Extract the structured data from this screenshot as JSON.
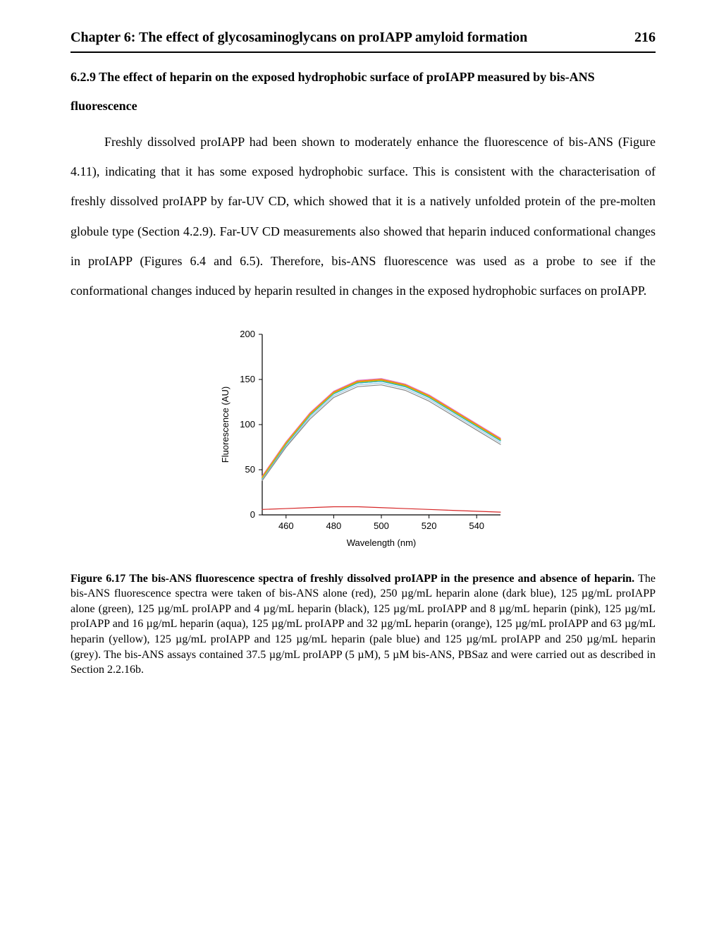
{
  "header": {
    "title": "Chapter 6: The effect of glycosaminoglycans on proIAPP amyloid formation",
    "page_number": "216"
  },
  "section": {
    "heading": "6.2.9 The effect of heparin on the exposed hydrophobic surface of proIAPP measured by bis-ANS fluorescence",
    "paragraph": "Freshly dissolved proIAPP had been shown to moderately enhance the fluorescence of bis-ANS (Figure 4.11), indicating that it has some exposed hydrophobic surface. This is consistent with the characterisation of freshly dissolved proIAPP by far-UV CD, which showed that it is a natively unfolded protein of the pre-molten globule type (Section 4.2.9). Far-UV CD measurements also showed that heparin induced conformational changes in proIAPP (Figures 6.4 and 6.5). Therefore, bis-ANS fluorescence was used as a probe to see if the conformational changes induced by heparin resulted in changes in the exposed hydrophobic surfaces on proIAPP."
  },
  "figure": {
    "type": "line",
    "title_fontsize": 12,
    "xlabel": "Wavelength (nm)",
    "ylabel": "Fluorescence (AU)",
    "label_fontsize": 13,
    "tick_fontsize": 13,
    "xlim": [
      450,
      550
    ],
    "ylim": [
      0,
      200
    ],
    "xticks": [
      460,
      480,
      500,
      520,
      540
    ],
    "yticks": [
      0,
      50,
      100,
      150,
      200
    ],
    "background_color": "#ffffff",
    "axis_color": "#000000",
    "line_width": 1.2,
    "series": [
      {
        "name": "bis-ANS alone",
        "color": "#d62728",
        "x": [
          450,
          460,
          470,
          480,
          490,
          500,
          510,
          520,
          530,
          540,
          550
        ],
        "y": [
          6,
          7,
          8,
          9,
          9,
          8,
          7,
          6,
          5,
          4,
          3
        ]
      },
      {
        "name": "250 µg/mL heparin alone",
        "color": "#1f3b8c",
        "x": [
          450,
          460,
          470,
          480,
          490,
          500,
          510,
          520,
          530,
          540,
          550
        ],
        "y": [
          40,
          78,
          110,
          134,
          146,
          148,
          142,
          130,
          114,
          98,
          82
        ]
      },
      {
        "name": "125 µg/mL proIAPP alone",
        "color": "#2ca02c",
        "x": [
          450,
          460,
          470,
          480,
          490,
          500,
          510,
          520,
          530,
          540,
          550
        ],
        "y": [
          42,
          80,
          112,
          136,
          148,
          150,
          144,
          132,
          116,
          100,
          84
        ]
      },
      {
        "name": "+4 µg/mL heparin",
        "color": "#000000",
        "x": [
          450,
          460,
          470,
          480,
          490,
          500,
          510,
          520,
          530,
          540,
          550
        ],
        "y": [
          41,
          79,
          111,
          135,
          147,
          149,
          143,
          131,
          115,
          99,
          83
        ]
      },
      {
        "name": "+8 µg/mL heparin",
        "color": "#e377c2",
        "x": [
          450,
          460,
          470,
          480,
          490,
          500,
          510,
          520,
          530,
          540,
          550
        ],
        "y": [
          43,
          81,
          113,
          137,
          149,
          151,
          145,
          133,
          117,
          101,
          85
        ]
      },
      {
        "name": "+16 µg/mL heparin",
        "color": "#17becf",
        "x": [
          450,
          460,
          470,
          480,
          490,
          500,
          510,
          520,
          530,
          540,
          550
        ],
        "y": [
          40,
          78,
          110,
          134,
          146,
          148,
          142,
          130,
          114,
          98,
          82
        ]
      },
      {
        "name": "+32 µg/mL heparin",
        "color": "#ff7f0e",
        "x": [
          450,
          460,
          470,
          480,
          490,
          500,
          510,
          520,
          530,
          540,
          550
        ],
        "y": [
          42,
          80,
          112,
          136,
          148,
          150,
          144,
          132,
          116,
          100,
          84
        ]
      },
      {
        "name": "+63 µg/mL heparin",
        "color": "#d4c20a",
        "x": [
          450,
          460,
          470,
          480,
          490,
          500,
          510,
          520,
          530,
          540,
          550
        ],
        "y": [
          41,
          79,
          111,
          135,
          147,
          149,
          143,
          131,
          115,
          99,
          83
        ]
      },
      {
        "name": "+125 µg/mL heparin",
        "color": "#9ecae1",
        "x": [
          450,
          460,
          470,
          480,
          490,
          500,
          510,
          520,
          530,
          540,
          550
        ],
        "y": [
          39,
          76,
          108,
          132,
          144,
          146,
          140,
          128,
          112,
          96,
          80
        ]
      },
      {
        "name": "+250 µg/mL heparin",
        "color": "#888888",
        "x": [
          450,
          460,
          470,
          480,
          490,
          500,
          510,
          520,
          530,
          540,
          550
        ],
        "y": [
          38,
          75,
          106,
          130,
          142,
          144,
          138,
          126,
          110,
          94,
          78
        ]
      }
    ]
  },
  "caption": {
    "title": "Figure 6.17 The bis-ANS fluorescence spectra of freshly dissolved proIAPP in the presence and absence of heparin.",
    "body": " The bis-ANS fluorescence spectra were taken of bis-ANS alone (red), 250 µg/mL heparin alone (dark blue), 125 µg/mL proIAPP alone (green), 125 µg/mL proIAPP and 4 µg/mL heparin (black), 125 µg/mL proIAPP and 8 µg/mL heparin (pink), 125 µg/mL proIAPP and 16 µg/mL heparin (aqua), 125 µg/mL proIAPP and 32 µg/mL heparin (orange), 125 µg/mL proIAPP and 63 µg/mL heparin (yellow), 125 µg/mL proIAPP and 125 µg/mL heparin (pale blue) and 125 µg/mL proIAPP and 250 µg/mL heparin (grey). The bis-ANS assays contained 37.5 µg/mL proIAPP (5 µM), 5 µM bis-ANS, PBSaz and were carried out as described in Section 2.2.16b."
  }
}
